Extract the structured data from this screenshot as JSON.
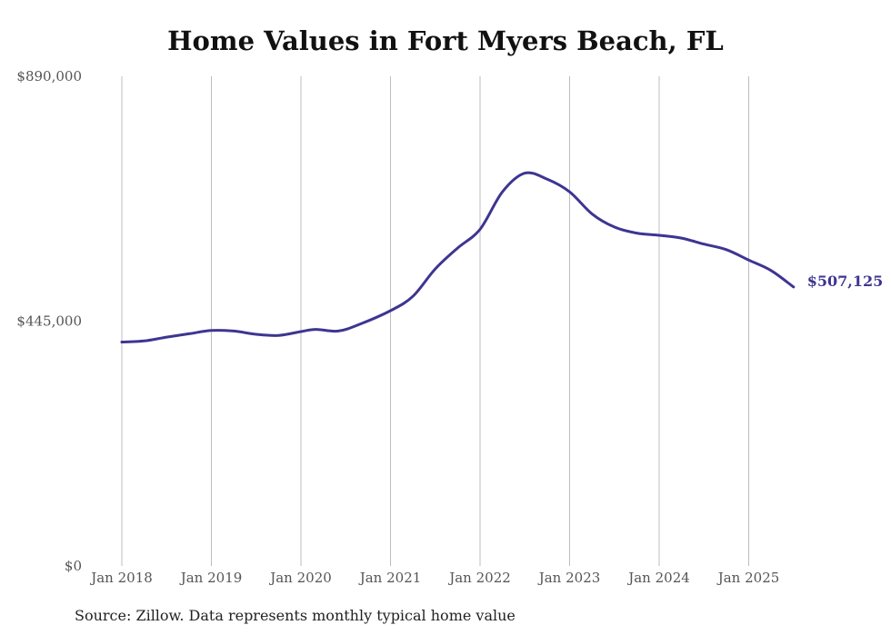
{
  "chart_data": {
    "type": "line",
    "title": "Home Values in Fort Myers Beach, FL",
    "source": "Source: Zillow. Data represents monthly typical home value",
    "ylim": [
      0,
      890000
    ],
    "y_ticks": [
      {
        "value": 0,
        "label": "$0"
      },
      {
        "value": 445000,
        "label": "$445,000"
      },
      {
        "value": 890000,
        "label": "$890,000"
      }
    ],
    "x_ticks": [
      {
        "value": "2018-01",
        "label": "Jan 2018"
      },
      {
        "value": "2019-01",
        "label": "Jan 2019"
      },
      {
        "value": "2020-01",
        "label": "Jan 2020"
      },
      {
        "value": "2021-01",
        "label": "Jan 2021"
      },
      {
        "value": "2022-01",
        "label": "Jan 2022"
      },
      {
        "value": "2023-01",
        "label": "Jan 2023"
      },
      {
        "value": "2024-01",
        "label": "Jan 2024"
      },
      {
        "value": "2025-01",
        "label": "Jan 2025"
      }
    ],
    "grid": "vertical",
    "line_color": "#3d3592",
    "end_label": "$507,125",
    "series": [
      {
        "x": [
          "2018-01",
          "2018-04",
          "2018-07",
          "2018-10",
          "2019-01",
          "2019-04",
          "2019-07",
          "2019-10",
          "2020-01",
          "2020-03",
          "2020-06",
          "2020-09",
          "2021-01",
          "2021-04",
          "2021-07",
          "2021-10",
          "2022-01",
          "2022-04",
          "2022-07",
          "2022-10",
          "2023-01",
          "2023-04",
          "2023-07",
          "2023-10",
          "2024-01",
          "2024-04",
          "2024-07",
          "2024-10",
          "2025-01",
          "2025-04",
          "2025-07"
        ],
        "y": [
          407000,
          409000,
          416000,
          422000,
          428000,
          427000,
          421000,
          419000,
          426000,
          430000,
          427000,
          440000,
          464000,
          490000,
          540000,
          578000,
          612000,
          680000,
          714000,
          703000,
          680000,
          640000,
          616000,
          605000,
          601000,
          596000,
          585000,
          575000,
          556000,
          537000,
          507125
        ]
      }
    ]
  }
}
